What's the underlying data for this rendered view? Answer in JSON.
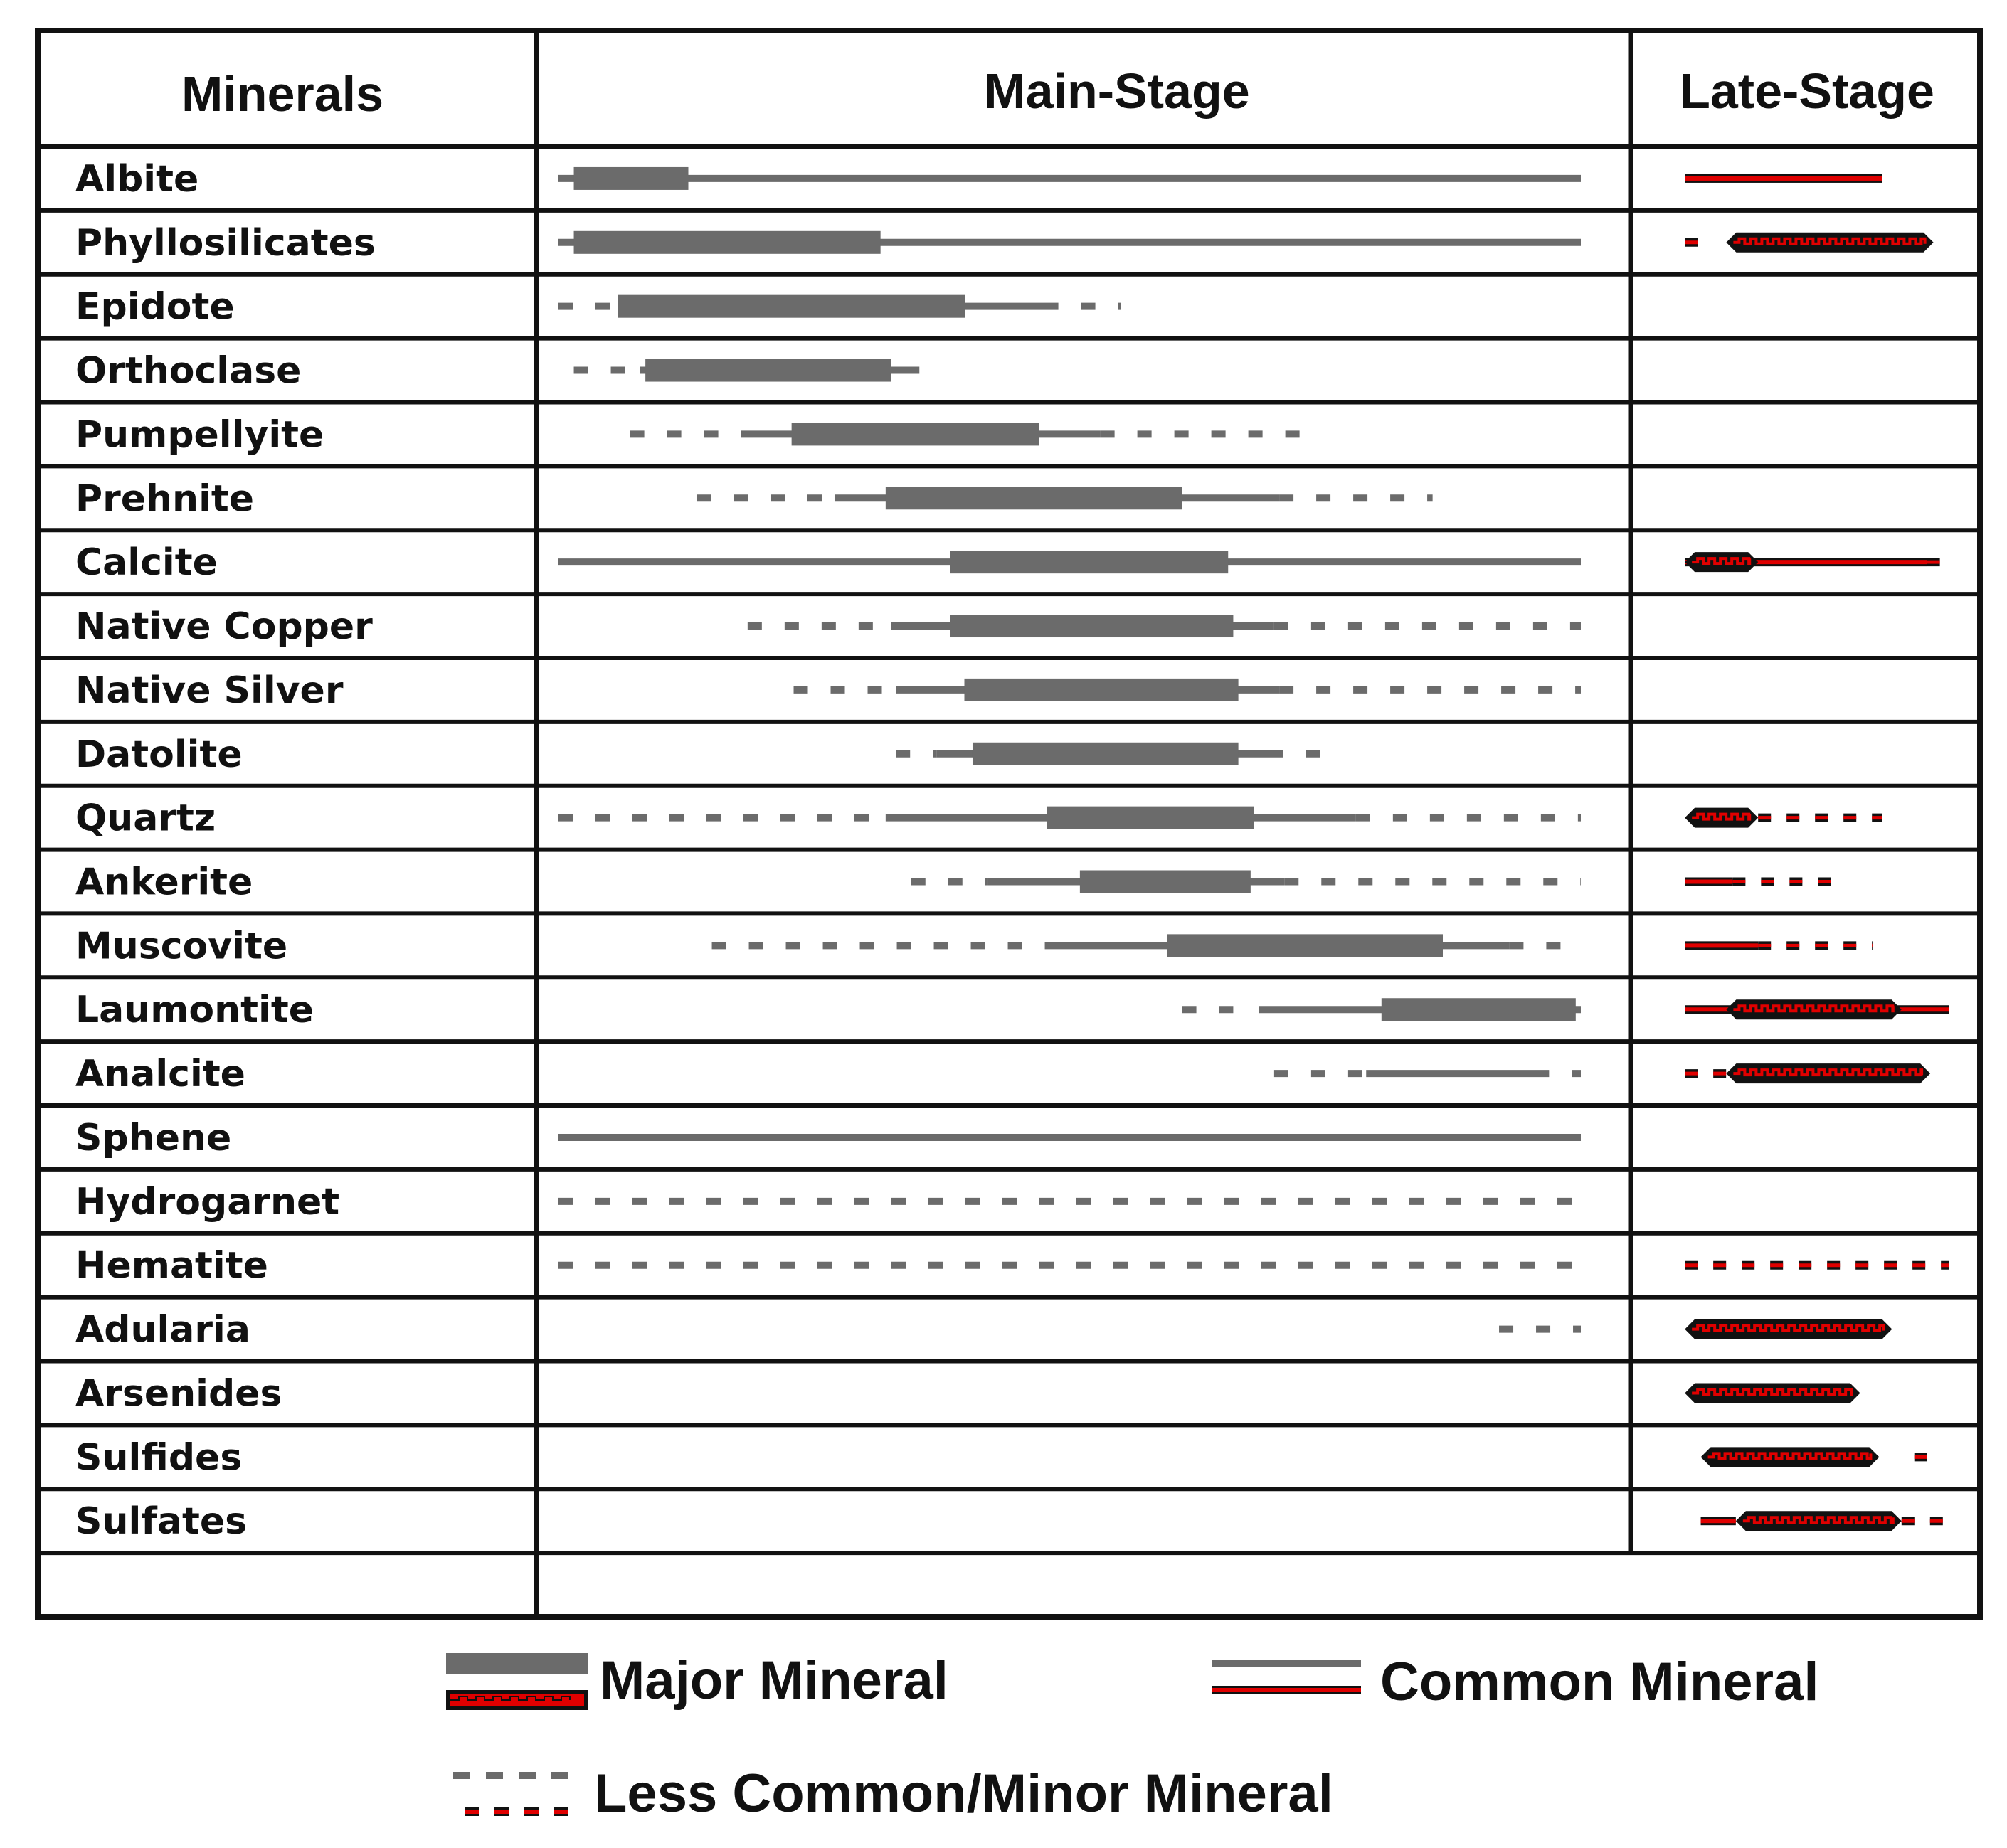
{
  "headers": {
    "minerals": "Minerals",
    "main_stage": "Main-Stage",
    "late_stage": "Late-Stage"
  },
  "colors": {
    "main_bar": "#6b6b6b",
    "late_bar": "#e00000",
    "late_bar_outline": "#111111",
    "grid": "#111111"
  },
  "rows": [
    {
      "name": "Albite",
      "main": [
        [
          "common",
          0,
          1.0
        ],
        [
          "major",
          0.015,
          0.127
        ]
      ],
      "late": [
        [
          "common",
          0.17,
          0.79
        ]
      ]
    },
    {
      "name": "Phyllosilicates",
      "main": [
        [
          "common",
          0,
          1.0
        ],
        [
          "major",
          0.015,
          0.315
        ]
      ],
      "late": [
        [
          "minor",
          0.17,
          0.24
        ],
        [
          "major",
          0.3,
          0.95
        ]
      ]
    },
    {
      "name": "Epidote",
      "main": [
        [
          "minor",
          0,
          0.06
        ],
        [
          "common",
          0.06,
          0.475
        ],
        [
          "minor",
          0.475,
          0.55
        ],
        [
          "major",
          0.058,
          0.398
        ]
      ],
      "late": []
    },
    {
      "name": "Orthoclase",
      "main": [
        [
          "minor",
          0.015,
          0.08
        ],
        [
          "common",
          0.08,
          0.353
        ],
        [
          "major",
          0.085,
          0.325
        ]
      ],
      "late": []
    },
    {
      "name": "Pumpellyite",
      "main": [
        [
          "minor",
          0.07,
          0.19
        ],
        [
          "common",
          0.19,
          0.53
        ],
        [
          "minor",
          0.53,
          0.745
        ],
        [
          "major",
          0.228,
          0.47
        ]
      ],
      "late": []
    },
    {
      "name": "Prehnite",
      "main": [
        [
          "minor",
          0.135,
          0.27
        ],
        [
          "common",
          0.27,
          0.705
        ],
        [
          "minor",
          0.705,
          0.855
        ],
        [
          "major",
          0.32,
          0.61
        ]
      ],
      "late": []
    },
    {
      "name": "Calcite",
      "main": [
        [
          "common",
          0,
          1.0
        ],
        [
          "major",
          0.383,
          0.655
        ]
      ],
      "late": [
        [
          "common",
          0.17,
          0.93
        ],
        [
          "minor",
          0.93,
          1.0
        ],
        [
          "major",
          0.17,
          0.4
        ]
      ]
    },
    {
      "name": "Native Copper",
      "main": [
        [
          "minor",
          0.185,
          0.325
        ],
        [
          "common",
          0.325,
          0.7
        ],
        [
          "minor",
          0.7,
          1.0
        ],
        [
          "major",
          0.383,
          0.66
        ]
      ],
      "late": []
    },
    {
      "name": "Native Silver",
      "main": [
        [
          "minor",
          0.23,
          0.33
        ],
        [
          "common",
          0.33,
          0.705
        ],
        [
          "minor",
          0.705,
          1.0
        ],
        [
          "major",
          0.397,
          0.665
        ]
      ],
      "late": []
    },
    {
      "name": "Datolite",
      "main": [
        [
          "minor",
          0.33,
          0.37
        ],
        [
          "common",
          0.37,
          0.695
        ],
        [
          "minor",
          0.695,
          0.76
        ],
        [
          "major",
          0.405,
          0.665
        ]
      ],
      "late": []
    },
    {
      "name": "Quartz",
      "main": [
        [
          "minor",
          0,
          0.32
        ],
        [
          "common",
          0.32,
          0.78
        ],
        [
          "minor",
          0.78,
          1.0
        ],
        [
          "major",
          0.478,
          0.68
        ]
      ],
      "late": [
        [
          "minor",
          0.4,
          0.79
        ],
        [
          "major",
          0.17,
          0.4
        ]
      ]
    },
    {
      "name": "Ankerite",
      "main": [
        [
          "minor",
          0.345,
          0.42
        ],
        [
          "common",
          0.42,
          0.71
        ],
        [
          "minor",
          0.71,
          1.0
        ],
        [
          "major",
          0.51,
          0.677
        ]
      ],
      "late": [
        [
          "common",
          0.17,
          0.32
        ],
        [
          "minor",
          0.32,
          0.67
        ]
      ]
    },
    {
      "name": "Muscovite",
      "main": [
        [
          "minor",
          0.15,
          0.478
        ],
        [
          "common",
          0.478,
          0.93
        ],
        [
          "minor",
          0.93,
          1.0
        ],
        [
          "major",
          0.595,
          0.865
        ]
      ],
      "late": [
        [
          "common",
          0.17,
          0.4
        ],
        [
          "minor",
          0.4,
          0.76
        ]
      ]
    },
    {
      "name": "Laumontite",
      "main": [
        [
          "minor",
          0.61,
          0.66
        ],
        [
          "common",
          0.685,
          1.0
        ],
        [
          "major",
          0.805,
          0.995
        ]
      ],
      "late": [
        [
          "common",
          0.17,
          1.0
        ],
        [
          "major",
          0.3,
          0.85
        ]
      ]
    },
    {
      "name": "Analcite",
      "main": [
        [
          "minor",
          0.7,
          0.79
        ],
        [
          "common",
          0.79,
          0.955
        ],
        [
          "minor",
          0.955,
          1.0
        ]
      ],
      "late": [
        [
          "minor",
          0.17,
          0.3
        ],
        [
          "major",
          0.3,
          0.94
        ]
      ]
    },
    {
      "name": "Sphene",
      "main": [
        [
          "common",
          0,
          1.0
        ]
      ],
      "late": []
    },
    {
      "name": "Hydrogarnet",
      "main": [
        [
          "minor",
          0,
          1.0
        ]
      ],
      "late": []
    },
    {
      "name": "Hematite",
      "main": [
        [
          "minor",
          0,
          1.0
        ]
      ],
      "late": [
        [
          "minor",
          0.17,
          1.0
        ]
      ]
    },
    {
      "name": "Adularia",
      "main": [
        [
          "minor",
          0.92,
          1.0
        ]
      ],
      "late": [
        [
          "major",
          0.17,
          0.82
        ]
      ]
    },
    {
      "name": "Arsenides",
      "main": [],
      "late": [
        [
          "major",
          0.17,
          0.72
        ]
      ]
    },
    {
      "name": "Sulfides",
      "main": [],
      "late": [
        [
          "major",
          0.22,
          0.78
        ],
        [
          "minor",
          0.89,
          0.95
        ]
      ]
    },
    {
      "name": "Sulfates",
      "main": [],
      "late": [
        [
          "common",
          0.22,
          0.33
        ],
        [
          "major",
          0.33,
          0.85
        ],
        [
          "minor",
          0.85,
          1.0
        ]
      ]
    },
    {
      "name": "",
      "main": [],
      "late": null
    }
  ],
  "legend": {
    "major": "Major Mineral",
    "common": "Common Mineral",
    "minor": "Less Common/Minor Mineral"
  }
}
